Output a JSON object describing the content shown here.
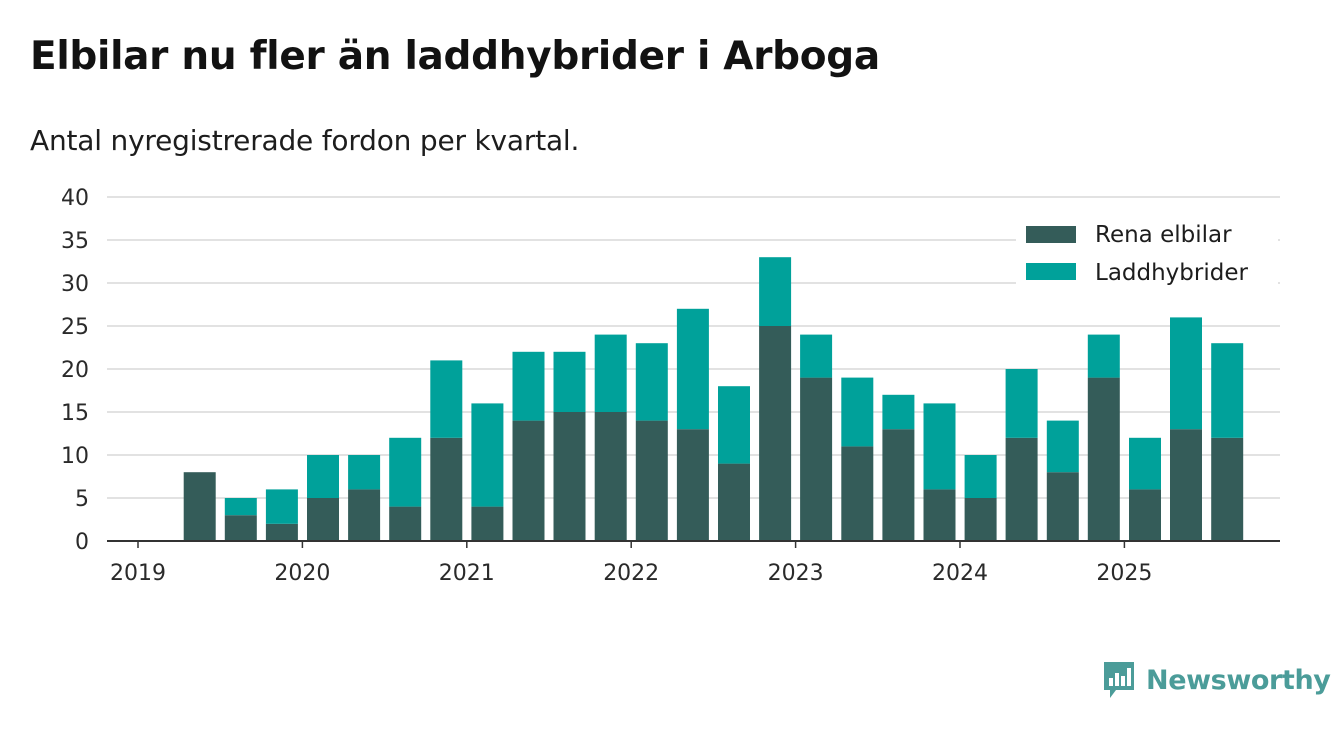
{
  "header": {
    "title": "Elbilar nu fler än laddhybrider i Arboga",
    "subtitle": "Antal nyregistrerade fordon per kvartal."
  },
  "brand": {
    "name": "Newsworthy",
    "icon": "newsworthy-logo-icon",
    "color": "#4b9c99"
  },
  "colors": {
    "series1": "#345c59",
    "series2": "#00a19a",
    "grid": "#d9d9d9",
    "axis": "#333333"
  },
  "chart_data": {
    "type": "bar",
    "stacked": true,
    "title": "Elbilar nu fler än laddhybrider i Arboga",
    "subtitle": "Antal nyregistrerade fordon per kvartal.",
    "xlabel": "",
    "ylabel": "",
    "ylim": [
      0,
      40
    ],
    "yticks": [
      0,
      5,
      10,
      15,
      20,
      25,
      30,
      35,
      40
    ],
    "grid": true,
    "legend_position": "top-right",
    "x_tick_labels": [
      "2019",
      "2020",
      "2021",
      "2022",
      "2023",
      "2024",
      "2025"
    ],
    "categories": [
      "2019Q2",
      "2019Q3",
      "2019Q4",
      "2020Q1",
      "2020Q2",
      "2020Q3",
      "2020Q4",
      "2021Q1",
      "2021Q2",
      "2021Q3",
      "2021Q4",
      "2022Q1",
      "2022Q2",
      "2022Q3",
      "2022Q4",
      "2023Q1",
      "2023Q2",
      "2023Q3",
      "2023Q4",
      "2024Q1",
      "2024Q2",
      "2024Q3",
      "2024Q4",
      "2025Q1",
      "2025Q2",
      "2025Q3"
    ],
    "series": [
      {
        "name": "Rena elbilar",
        "color": "#345c59",
        "values": [
          8,
          3,
          2,
          5,
          6,
          4,
          12,
          4,
          14,
          15,
          15,
          14,
          13,
          9,
          25,
          19,
          11,
          13,
          6,
          5,
          12,
          8,
          19,
          6,
          13,
          12
        ]
      },
      {
        "name": "Laddhybrider",
        "color": "#00a19a",
        "values": [
          0,
          2,
          4,
          5,
          4,
          8,
          9,
          12,
          8,
          7,
          9,
          9,
          14,
          9,
          8,
          5,
          8,
          4,
          10,
          5,
          8,
          6,
          5,
          6,
          13,
          11
        ]
      }
    ]
  }
}
